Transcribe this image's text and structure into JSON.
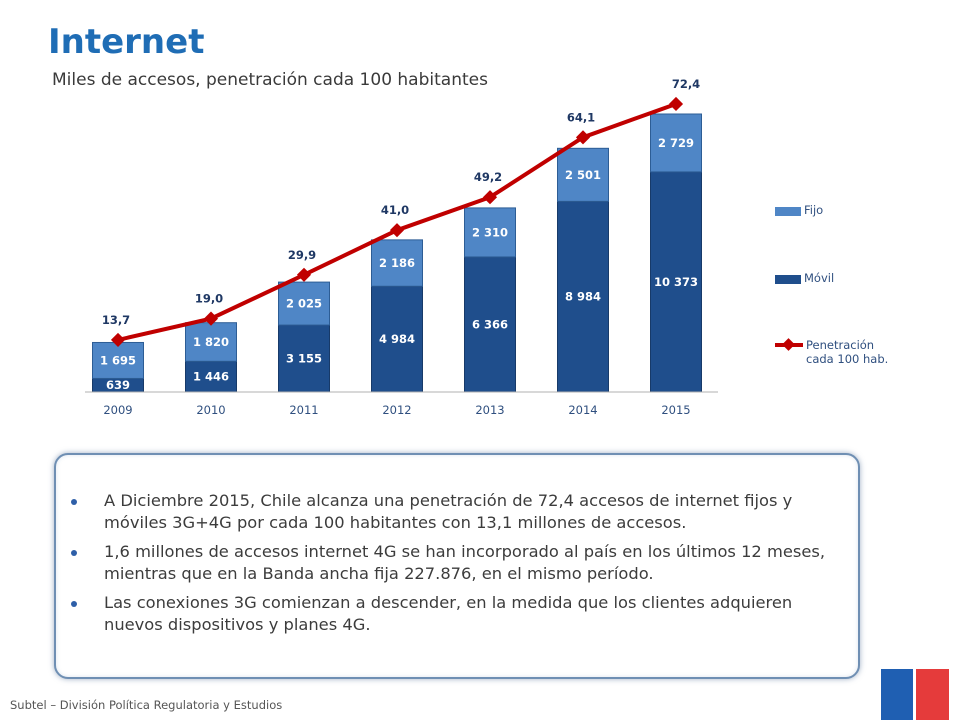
{
  "header": {
    "title": "Internet",
    "subtitle": "Miles de accesos, penetración cada 100 habitantes"
  },
  "chart_data": {
    "type": "bar",
    "stacked": true,
    "categories": [
      "2009",
      "2010",
      "2011",
      "2012",
      "2013",
      "2014",
      "2015"
    ],
    "series": [
      {
        "name": "Móvil",
        "values": [
          639,
          1446,
          3155,
          4984,
          6366,
          8984,
          10373
        ],
        "labels": [
          "639",
          "1 446",
          "3 155",
          "4 984",
          "6 366",
          "8 984",
          "10 373"
        ],
        "color": "#1f4e8c"
      },
      {
        "name": "Fijo",
        "values": [
          1695,
          1820,
          2025,
          2186,
          2310,
          2501,
          2729
        ],
        "labels": [
          "1 695",
          "1 820",
          "2 025",
          "2 186",
          "2 310",
          "2 501",
          "2 729"
        ],
        "color": "#4f86c6"
      }
    ],
    "line": {
      "name": "Penetración cada 100 hab.",
      "values": [
        13.7,
        19.0,
        29.9,
        41.0,
        49.2,
        64.1,
        72.4
      ],
      "labels": [
        "13,7",
        "19,0",
        "29,9",
        "41,0",
        "49,2",
        "64,1",
        "72,4"
      ],
      "color": "#c00000"
    },
    "legend_position": "right",
    "grid": false
  },
  "legend": {
    "fijo": "Fijo",
    "movil": "Móvil",
    "penetracion_line1": "Penetración",
    "penetracion_line2": "cada 100 hab."
  },
  "bullets": [
    "A Diciembre 2015, Chile alcanza una penetración de 72,4 accesos de internet fijos y móviles 3G+4G por cada 100 habitantes con 13,1 millones de accesos.",
    "1,6 millones de accesos internet 4G se han incorporado al país en los últimos 12 meses, mientras que en la Banda ancha fija 227.876, en el mismo período.",
    "Las conexiones 3G comienzan a descender, en la medida que los clientes adquieren nuevos dispositivos y planes 4G."
  ],
  "footer": "Subtel – División Política Regulatoria y Estudios",
  "colors": {
    "title": "#1f6db5",
    "movil": "#1f4e8c",
    "fijo": "#4f86c6",
    "line": "#c00000",
    "flag_blue": "#1f5fb2",
    "flag_red": "#e53b3b"
  }
}
